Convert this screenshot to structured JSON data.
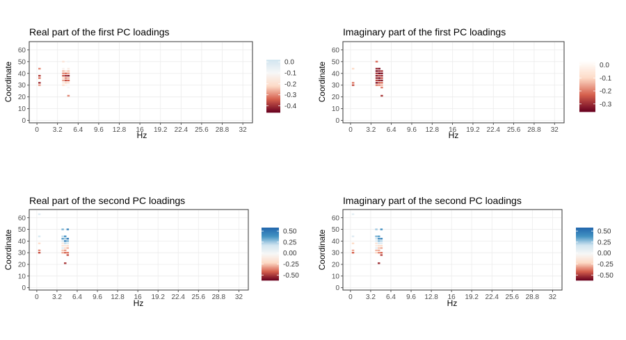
{
  "chart_data": [
    {
      "type": "heatmap",
      "title": "Real part of the first PC loadings",
      "xlabel": "Hz",
      "ylabel": "Coordinate",
      "x_ticks": [
        "0",
        "3.2",
        "6.4",
        "9.6",
        "12.8",
        "16",
        "19.2",
        "22.4",
        "25.6",
        "28.8",
        "32"
      ],
      "y_ticks": [
        "0",
        "10",
        "20",
        "30",
        "40",
        "50",
        "60"
      ],
      "xlim": [
        -1.2,
        33.5
      ],
      "ylim": [
        -2,
        67
      ],
      "grid": true,
      "legend": {
        "position": "right",
        "ticks": [
          "0.0",
          "-0.1",
          "-0.2",
          "-0.3",
          "-0.4"
        ],
        "range": [
          -0.46,
          0.02
        ],
        "colors": [
          "#67001f",
          "#d6604d",
          "#fddbc7",
          "#f7f7f7",
          "#d1e5f0"
        ]
      },
      "cells": [
        {
          "x": 0.4,
          "y": 44,
          "v": -0.3
        },
        {
          "x": 0.4,
          "y": 38,
          "v": -0.38
        },
        {
          "x": 0.4,
          "y": 36,
          "v": -0.32
        },
        {
          "x": 0.4,
          "y": 32,
          "v": -0.4
        },
        {
          "x": 0.4,
          "y": 30,
          "v": -0.28
        },
        {
          "x": 4.1,
          "y": 50,
          "v": -0.18
        },
        {
          "x": 4.1,
          "y": 44,
          "v": -0.12
        },
        {
          "x": 4.1,
          "y": 42,
          "v": -0.25
        },
        {
          "x": 4.1,
          "y": 40,
          "v": -0.3
        },
        {
          "x": 4.1,
          "y": 38,
          "v": -0.35
        },
        {
          "x": 4.1,
          "y": 36,
          "v": -0.22
        },
        {
          "x": 4.1,
          "y": 34,
          "v": -0.28
        },
        {
          "x": 4.1,
          "y": 32,
          "v": -0.15
        },
        {
          "x": 4.1,
          "y": 30,
          "v": -0.2
        },
        {
          "x": 4.5,
          "y": 42,
          "v": -0.18
        },
        {
          "x": 4.5,
          "y": 40,
          "v": -0.32
        },
        {
          "x": 4.5,
          "y": 38,
          "v": -0.4
        },
        {
          "x": 4.5,
          "y": 36,
          "v": -0.3
        },
        {
          "x": 4.5,
          "y": 34,
          "v": -0.36
        },
        {
          "x": 4.5,
          "y": 32,
          "v": -0.22
        },
        {
          "x": 4.5,
          "y": 30,
          "v": -0.12
        },
        {
          "x": 4.9,
          "y": 50,
          "v": -0.08
        },
        {
          "x": 4.9,
          "y": 44,
          "v": -0.14
        },
        {
          "x": 4.9,
          "y": 42,
          "v": -0.24
        },
        {
          "x": 4.9,
          "y": 40,
          "v": -0.28
        },
        {
          "x": 4.9,
          "y": 38,
          "v": -0.42
        },
        {
          "x": 4.9,
          "y": 36,
          "v": -0.26
        },
        {
          "x": 4.9,
          "y": 34,
          "v": -0.34
        },
        {
          "x": 4.9,
          "y": 32,
          "v": -0.18
        },
        {
          "x": 4.9,
          "y": 28,
          "v": -0.1
        },
        {
          "x": 4.9,
          "y": 21,
          "v": -0.3
        }
      ]
    },
    {
      "type": "heatmap",
      "title": "Imaginary part of the first PC loadings",
      "xlabel": "Hz",
      "ylabel": "Coordinate",
      "x_ticks": [
        "0",
        "3.2",
        "6.4",
        "9.6",
        "12.8",
        "16",
        "19.2",
        "22.4",
        "25.6",
        "28.8",
        "32"
      ],
      "y_ticks": [
        "0",
        "10",
        "20",
        "30",
        "40",
        "50",
        "60"
      ],
      "xlim": [
        -1.2,
        33.5
      ],
      "ylim": [
        -2,
        67
      ],
      "grid": true,
      "legend": {
        "position": "right",
        "ticks": [
          "0.0",
          "-0.1",
          "-0.2",
          "-0.3"
        ],
        "range": [
          -0.36,
          0.03
        ],
        "colors": [
          "#67001f",
          "#d6604d",
          "#fddbc7",
          "#ffffff"
        ]
      },
      "cells": [
        {
          "x": 0.4,
          "y": 44,
          "v": -0.1
        },
        {
          "x": 0.4,
          "y": 32,
          "v": -0.2
        },
        {
          "x": 0.4,
          "y": 30,
          "v": -0.25
        },
        {
          "x": 4.1,
          "y": 50,
          "v": -0.22
        },
        {
          "x": 4.1,
          "y": 44,
          "v": -0.3
        },
        {
          "x": 4.1,
          "y": 42,
          "v": -0.34
        },
        {
          "x": 4.1,
          "y": 40,
          "v": -0.28
        },
        {
          "x": 4.1,
          "y": 38,
          "v": -0.32
        },
        {
          "x": 4.1,
          "y": 36,
          "v": -0.3
        },
        {
          "x": 4.1,
          "y": 34,
          "v": -0.26
        },
        {
          "x": 4.1,
          "y": 32,
          "v": -0.33
        },
        {
          "x": 4.1,
          "y": 30,
          "v": -0.2
        },
        {
          "x": 4.5,
          "y": 44,
          "v": -0.33
        },
        {
          "x": 4.5,
          "y": 42,
          "v": -0.3
        },
        {
          "x": 4.5,
          "y": 40,
          "v": -0.35
        },
        {
          "x": 4.5,
          "y": 38,
          "v": -0.27
        },
        {
          "x": 4.5,
          "y": 36,
          "v": -0.34
        },
        {
          "x": 4.5,
          "y": 34,
          "v": -0.31
        },
        {
          "x": 4.5,
          "y": 32,
          "v": -0.24
        },
        {
          "x": 4.5,
          "y": 30,
          "v": -0.18
        },
        {
          "x": 4.9,
          "y": 42,
          "v": -0.29
        },
        {
          "x": 4.9,
          "y": 40,
          "v": -0.33
        },
        {
          "x": 4.9,
          "y": 38,
          "v": -0.3
        },
        {
          "x": 4.9,
          "y": 36,
          "v": -0.25
        },
        {
          "x": 4.9,
          "y": 34,
          "v": -0.32
        },
        {
          "x": 4.9,
          "y": 32,
          "v": -0.22
        },
        {
          "x": 4.9,
          "y": 30,
          "v": -0.14
        },
        {
          "x": 4.9,
          "y": 28,
          "v": -0.2
        },
        {
          "x": 4.9,
          "y": 21,
          "v": -0.28
        }
      ]
    },
    {
      "type": "heatmap",
      "title": "Real part of the second PC loadings",
      "xlabel": "Hz",
      "ylabel": "Coordinate",
      "x_ticks": [
        "0",
        "3.2",
        "6.4",
        "9.6",
        "12.8",
        "16",
        "19.2",
        "22.4",
        "25.6",
        "28.8",
        "32"
      ],
      "y_ticks": [
        "0",
        "10",
        "20",
        "30",
        "40",
        "50",
        "60"
      ],
      "xlim": [
        -1.2,
        33.5
      ],
      "ylim": [
        -2,
        67
      ],
      "grid": true,
      "legend": {
        "position": "right",
        "ticks": [
          "0.50",
          "0.25",
          "0.00",
          "-0.25",
          "-0.50"
        ],
        "range": [
          -0.62,
          0.58
        ],
        "colors": [
          "#67001f",
          "#d6604d",
          "#fddbc7",
          "#f7f7f7",
          "#d1e5f0",
          "#4393c3",
          "#2166ac"
        ]
      },
      "cells": [
        {
          "x": 0.4,
          "y": 63,
          "v": 0.1
        },
        {
          "x": 0.4,
          "y": 44,
          "v": 0.15
        },
        {
          "x": 0.4,
          "y": 38,
          "v": -0.2
        },
        {
          "x": 0.4,
          "y": 32,
          "v": -0.35
        },
        {
          "x": 0.4,
          "y": 30,
          "v": -0.45
        },
        {
          "x": 4.1,
          "y": 50,
          "v": 0.3
        },
        {
          "x": 4.1,
          "y": 44,
          "v": 0.2
        },
        {
          "x": 4.1,
          "y": 42,
          "v": 0.35
        },
        {
          "x": 4.1,
          "y": 40,
          "v": 0.15
        },
        {
          "x": 4.1,
          "y": 38,
          "v": -0.1
        },
        {
          "x": 4.1,
          "y": 36,
          "v": -0.15
        },
        {
          "x": 4.1,
          "y": 34,
          "v": 0.1
        },
        {
          "x": 4.1,
          "y": 32,
          "v": -0.25
        },
        {
          "x": 4.1,
          "y": 30,
          "v": -0.3
        },
        {
          "x": 4.5,
          "y": 44,
          "v": 0.4
        },
        {
          "x": 4.5,
          "y": 42,
          "v": 0.25
        },
        {
          "x": 4.5,
          "y": 40,
          "v": 0.45
        },
        {
          "x": 4.5,
          "y": 38,
          "v": 0.2
        },
        {
          "x": 4.5,
          "y": 36,
          "v": -0.12
        },
        {
          "x": 4.5,
          "y": 34,
          "v": -0.2
        },
        {
          "x": 4.5,
          "y": 32,
          "v": -0.32
        },
        {
          "x": 4.5,
          "y": 30,
          "v": -0.4
        },
        {
          "x": 4.9,
          "y": 50,
          "v": 0.45
        },
        {
          "x": 4.9,
          "y": 42,
          "v": 0.5
        },
        {
          "x": 4.9,
          "y": 40,
          "v": 0.3
        },
        {
          "x": 4.9,
          "y": 38,
          "v": 0.12
        },
        {
          "x": 4.9,
          "y": 36,
          "v": -0.18
        },
        {
          "x": 4.9,
          "y": 34,
          "v": -0.28
        },
        {
          "x": 4.9,
          "y": 30,
          "v": -0.38
        },
        {
          "x": 4.9,
          "y": 28,
          "v": -0.45
        },
        {
          "x": 4.5,
          "y": 21,
          "v": -0.5
        }
      ]
    },
    {
      "type": "heatmap",
      "title": "Imaginary part of the second PC loadings",
      "xlabel": "Hz",
      "ylabel": "Coordinate",
      "x_ticks": [
        "0",
        "3.2",
        "6.4",
        "9.6",
        "12.8",
        "16",
        "19.2",
        "22.4",
        "25.6",
        "28.8",
        "32"
      ],
      "y_ticks": [
        "0",
        "10",
        "20",
        "30",
        "40",
        "50",
        "60"
      ],
      "xlim": [
        -1.2,
        33.5
      ],
      "ylim": [
        -2,
        67
      ],
      "grid": true,
      "legend": {
        "position": "right",
        "ticks": [
          "0.50",
          "0.25",
          "0.00",
          "-0.25",
          "-0.50"
        ],
        "range": [
          -0.62,
          0.58
        ],
        "colors": [
          "#67001f",
          "#d6604d",
          "#fddbc7",
          "#f7f7f7",
          "#d1e5f0",
          "#4393c3",
          "#2166ac"
        ]
      },
      "cells": [
        {
          "x": 0.4,
          "y": 63,
          "v": 0.08
        },
        {
          "x": 0.4,
          "y": 44,
          "v": 0.12
        },
        {
          "x": 0.4,
          "y": 38,
          "v": -0.22
        },
        {
          "x": 0.4,
          "y": 32,
          "v": -0.3
        },
        {
          "x": 0.4,
          "y": 30,
          "v": -0.42
        },
        {
          "x": 4.1,
          "y": 50,
          "v": 0.25
        },
        {
          "x": 4.1,
          "y": 44,
          "v": 0.3
        },
        {
          "x": 4.1,
          "y": 42,
          "v": 0.18
        },
        {
          "x": 4.1,
          "y": 40,
          "v": 0.12
        },
        {
          "x": 4.1,
          "y": 38,
          "v": -0.15
        },
        {
          "x": 4.1,
          "y": 36,
          "v": -0.1
        },
        {
          "x": 4.1,
          "y": 34,
          "v": 0.08
        },
        {
          "x": 4.1,
          "y": 32,
          "v": -0.28
        },
        {
          "x": 4.1,
          "y": 30,
          "v": -0.22
        },
        {
          "x": 4.5,
          "y": 44,
          "v": 0.35
        },
        {
          "x": 4.5,
          "y": 42,
          "v": 0.42
        },
        {
          "x": 4.5,
          "y": 40,
          "v": 0.28
        },
        {
          "x": 4.5,
          "y": 38,
          "v": 0.15
        },
        {
          "x": 4.5,
          "y": 36,
          "v": -0.18
        },
        {
          "x": 4.5,
          "y": 34,
          "v": -0.25
        },
        {
          "x": 4.5,
          "y": 32,
          "v": -0.3
        },
        {
          "x": 4.5,
          "y": 30,
          "v": -0.35
        },
        {
          "x": 4.9,
          "y": 50,
          "v": 0.4
        },
        {
          "x": 4.9,
          "y": 42,
          "v": 0.45
        },
        {
          "x": 4.9,
          "y": 40,
          "v": 0.22
        },
        {
          "x": 4.9,
          "y": 38,
          "v": 0.1
        },
        {
          "x": 4.9,
          "y": 36,
          "v": -0.2
        },
        {
          "x": 4.9,
          "y": 34,
          "v": -0.3
        },
        {
          "x": 4.9,
          "y": 30,
          "v": -0.4
        },
        {
          "x": 4.9,
          "y": 28,
          "v": -0.48
        },
        {
          "x": 4.5,
          "y": 21,
          "v": -0.52
        }
      ]
    }
  ]
}
